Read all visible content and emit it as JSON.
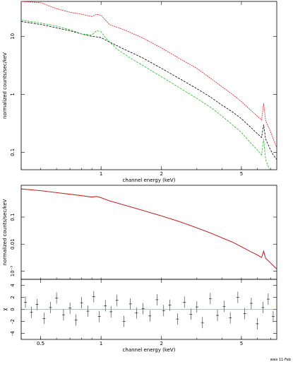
{
  "chart_data": [
    {
      "type": "line",
      "xlabel": "channel energy (keV)",
      "ylabel": "normalized counts/sec/keV",
      "xscale": "log",
      "yscale": "log",
      "xlim": [
        0.4,
        7.5
      ],
      "ylim": [
        0.05,
        40
      ],
      "x_ticks": [
        {
          "value": 1,
          "label": "1"
        },
        {
          "value": 2,
          "label": "2"
        },
        {
          "value": 5,
          "label": "5"
        }
      ],
      "y_ticks": [
        {
          "value": 0.1,
          "label": "0.1"
        },
        {
          "value": 1,
          "label": "1"
        },
        {
          "value": 10,
          "label": "10"
        }
      ],
      "series": [
        {
          "color": "#e8181c",
          "x": [
            0.4,
            0.5,
            0.6,
            0.7,
            0.8,
            0.9,
            0.95,
            1.0,
            1.1,
            1.3,
            1.6,
            2.0,
            2.5,
            3.0,
            3.5,
            4.0,
            4.5,
            5.0,
            5.5,
            6.0,
            6.3,
            6.45,
            6.6,
            6.9,
            7.2,
            7.5
          ],
          "y": [
            40,
            38,
            30,
            26,
            24,
            22,
            24,
            23,
            16,
            13,
            9.5,
            6.3,
            4.0,
            2.8,
            1.9,
            1.35,
            1.0,
            0.75,
            0.55,
            0.42,
            0.36,
            0.7,
            0.35,
            0.25,
            0.17,
            0.12
          ]
        },
        {
          "color": "#000000",
          "x": [
            0.4,
            0.5,
            0.6,
            0.7,
            0.8,
            0.9,
            0.95,
            1.0,
            1.1,
            1.3,
            1.6,
            2.0,
            2.5,
            3.0,
            3.5,
            4.0,
            4.5,
            5.0,
            5.5,
            6.0,
            6.3,
            6.45,
            6.6,
            6.9,
            7.2,
            7.5
          ],
          "y": [
            18,
            16,
            14,
            12.5,
            11,
            10,
            9.8,
            9.5,
            8,
            6,
            4.3,
            2.8,
            1.8,
            1.25,
            0.9,
            0.65,
            0.5,
            0.38,
            0.28,
            0.21,
            0.18,
            0.3,
            0.17,
            0.12,
            0.09,
            0.075
          ]
        },
        {
          "color": "#1fbf1f",
          "x": [
            0.4,
            0.5,
            0.6,
            0.7,
            0.8,
            0.9,
            0.95,
            1.0,
            1.05,
            1.2,
            1.4,
            1.6,
            2.0,
            2.5,
            3.0,
            3.5,
            4.0,
            4.5,
            5.0,
            5.5,
            6.0,
            6.3,
            6.45,
            6.6,
            6.9
          ],
          "y": [
            19,
            17,
            15,
            13,
            11,
            10.5,
            12.5,
            12,
            9.5,
            6,
            4.2,
            3.2,
            2.0,
            1.25,
            0.85,
            0.6,
            0.42,
            0.3,
            0.22,
            0.15,
            0.11,
            0.09,
            0.17,
            0.075,
            0.05
          ]
        }
      ]
    },
    {
      "type": "line",
      "xlabel": "",
      "ylabel": "normalized counts/sec/keV",
      "xscale": "log",
      "yscale": "log",
      "xlim": [
        0.4,
        7.5
      ],
      "ylim": [
        0.0005,
        1.5
      ],
      "y_ticks": [
        {
          "value": 0.1,
          "label": "0.1"
        },
        {
          "value": 0.01,
          "label": "0.01"
        },
        {
          "value": 0.001,
          "label": "10⁻³"
        }
      ],
      "series": [
        {
          "color": "#000000",
          "x": [
            0.4,
            0.5,
            0.6,
            0.7,
            0.8,
            0.9,
            0.95,
            1.0,
            1.1,
            1.3,
            1.6,
            2.0,
            2.5,
            3.0,
            3.5,
            4.0,
            4.5,
            5.0,
            5.5,
            6.0,
            6.3,
            6.45,
            6.6,
            6.9,
            7.2,
            7.5
          ],
          "y": [
            1.1,
            0.95,
            0.8,
            0.7,
            0.62,
            0.55,
            0.58,
            0.52,
            0.4,
            0.28,
            0.18,
            0.11,
            0.065,
            0.04,
            0.026,
            0.017,
            0.012,
            0.008,
            0.0055,
            0.004,
            0.0032,
            0.0055,
            0.003,
            0.0022,
            0.0016,
            0.0012
          ]
        },
        {
          "color": "#e8181c",
          "x": [
            0.4,
            0.5,
            0.6,
            0.7,
            0.8,
            0.9,
            0.95,
            1.0,
            1.1,
            1.3,
            1.6,
            2.0,
            2.5,
            3.0,
            3.5,
            4.0,
            4.5,
            5.0,
            5.5,
            6.0,
            6.3,
            6.45,
            6.6,
            6.9,
            7.2,
            7.5
          ],
          "y": [
            1.1,
            0.95,
            0.8,
            0.7,
            0.62,
            0.55,
            0.58,
            0.52,
            0.4,
            0.28,
            0.18,
            0.11,
            0.065,
            0.04,
            0.026,
            0.017,
            0.012,
            0.008,
            0.0055,
            0.004,
            0.0032,
            0.0055,
            0.003,
            0.0022,
            0.0016,
            0.0012
          ]
        }
      ]
    },
    {
      "type": "scatter",
      "xlabel": "channel energy (keV)",
      "ylabel": "χ",
      "xscale": "log",
      "xlim": [
        0.4,
        7.5
      ],
      "ylim": [
        -5,
        5
      ],
      "x_ticks": [
        {
          "value": 0.5,
          "label": "0.5"
        },
        {
          "value": 1,
          "label": "1"
        },
        {
          "value": 2,
          "label": "2"
        },
        {
          "value": 5,
          "label": "5"
        }
      ],
      "y_ticks": [
        {
          "value": 4,
          "label": "4"
        },
        {
          "value": 2,
          "label": "2"
        },
        {
          "value": 0,
          "label": "0"
        },
        {
          "value": -2,
          "label": "-2"
        },
        {
          "value": -4,
          "label": "-4"
        }
      ],
      "series": [
        {
          "color": "#000000",
          "x": [
            0.42,
            0.45,
            0.48,
            0.52,
            0.56,
            0.6,
            0.65,
            0.7,
            0.75,
            0.8,
            0.86,
            0.92,
            0.98,
            1.05,
            1.12,
            1.2,
            1.3,
            1.4,
            1.5,
            1.62,
            1.75,
            1.9,
            2.05,
            2.2,
            2.4,
            2.6,
            2.8,
            3.0,
            3.2,
            3.5,
            3.8,
            4.1,
            4.4,
            4.8,
            5.2,
            5.6,
            6.0,
            6.4,
            6.8,
            7.2
          ],
          "y": [
            1.2,
            -0.5,
            0.8,
            -1.5,
            0.3,
            1.9,
            -0.9,
            0.2,
            -1.8,
            1.1,
            -0.3,
            2.1,
            -1.2,
            0.6,
            -0.4,
            1.5,
            -2.0,
            0.9,
            -0.6,
            0.1,
            -1.1,
            1.6,
            -0.2,
            0.7,
            -1.6,
            1.2,
            -0.8,
            0.4,
            -2.2,
            1.8,
            -1.0,
            0.5,
            -1.4,
            2.0,
            -0.7,
            1.0,
            -2.4,
            0.3,
            1.7,
            -1.2
          ]
        }
      ]
    }
  ],
  "footer": {
    "text": "wws 11-Feb"
  }
}
